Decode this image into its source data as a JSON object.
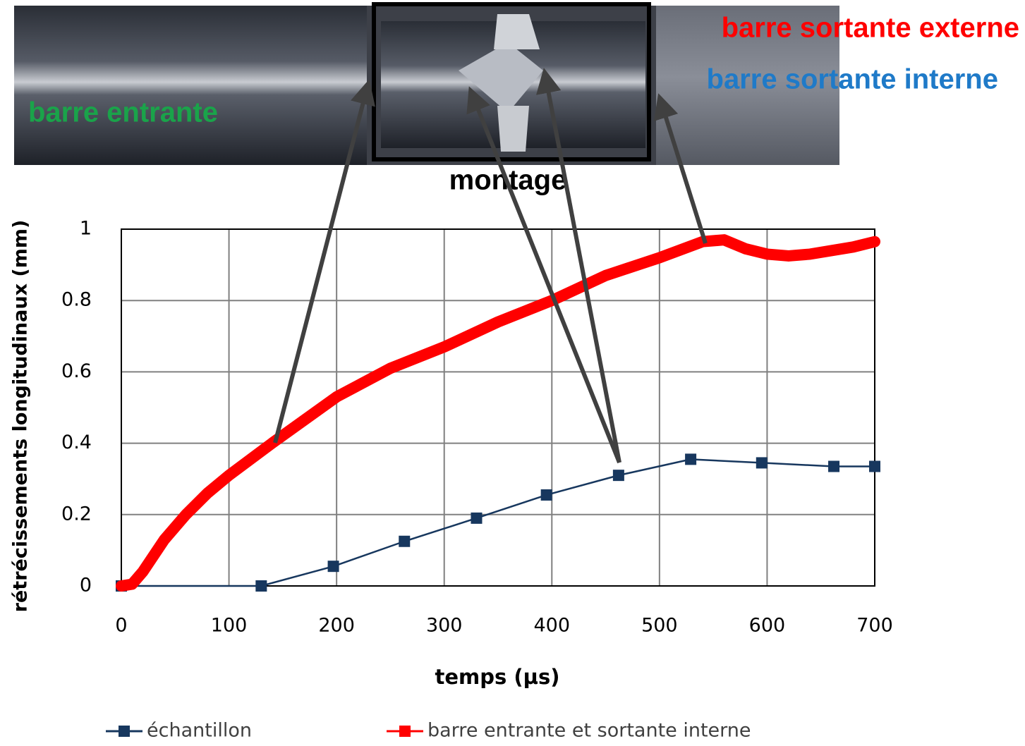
{
  "chart_data": {
    "type": "line",
    "annotations": [
      "barre entrante",
      "montage",
      "barre sortante externe",
      "barre sortante interne"
    ],
    "xlabel": "temps (µs)",
    "ylabel": "rétrécissements longitudinaux (mm)",
    "xlim": [
      0,
      700
    ],
    "xticks": [
      0,
      100,
      200,
      300,
      400,
      500,
      600,
      700
    ],
    "ylim": [
      0,
      1
    ],
    "yticks": [
      0,
      0.2,
      0.4,
      0.6,
      0.8,
      1
    ],
    "grid": true,
    "series": [
      {
        "name": "échantillon",
        "color": "#17375e",
        "x": [
          0,
          130,
          197,
          263,
          330,
          395,
          462,
          529,
          595,
          662,
          700
        ],
        "values": [
          0,
          0,
          0.055,
          0.125,
          0.19,
          0.255,
          0.31,
          0.355,
          0.345,
          0.335,
          0.335
        ]
      },
      {
        "name": "barre entrante et sortante interne",
        "color": "#ff0000",
        "x": [
          0,
          10,
          20,
          40,
          60,
          80,
          100,
          140,
          200,
          250,
          300,
          350,
          400,
          450,
          500,
          540,
          560,
          580,
          600,
          620,
          640,
          680,
          700
        ],
        "values": [
          0,
          0.005,
          0.04,
          0.13,
          0.2,
          0.26,
          0.31,
          0.4,
          0.53,
          0.61,
          0.67,
          0.74,
          0.8,
          0.87,
          0.92,
          0.965,
          0.97,
          0.945,
          0.93,
          0.925,
          0.93,
          0.95,
          0.965
        ]
      }
    ]
  }
}
